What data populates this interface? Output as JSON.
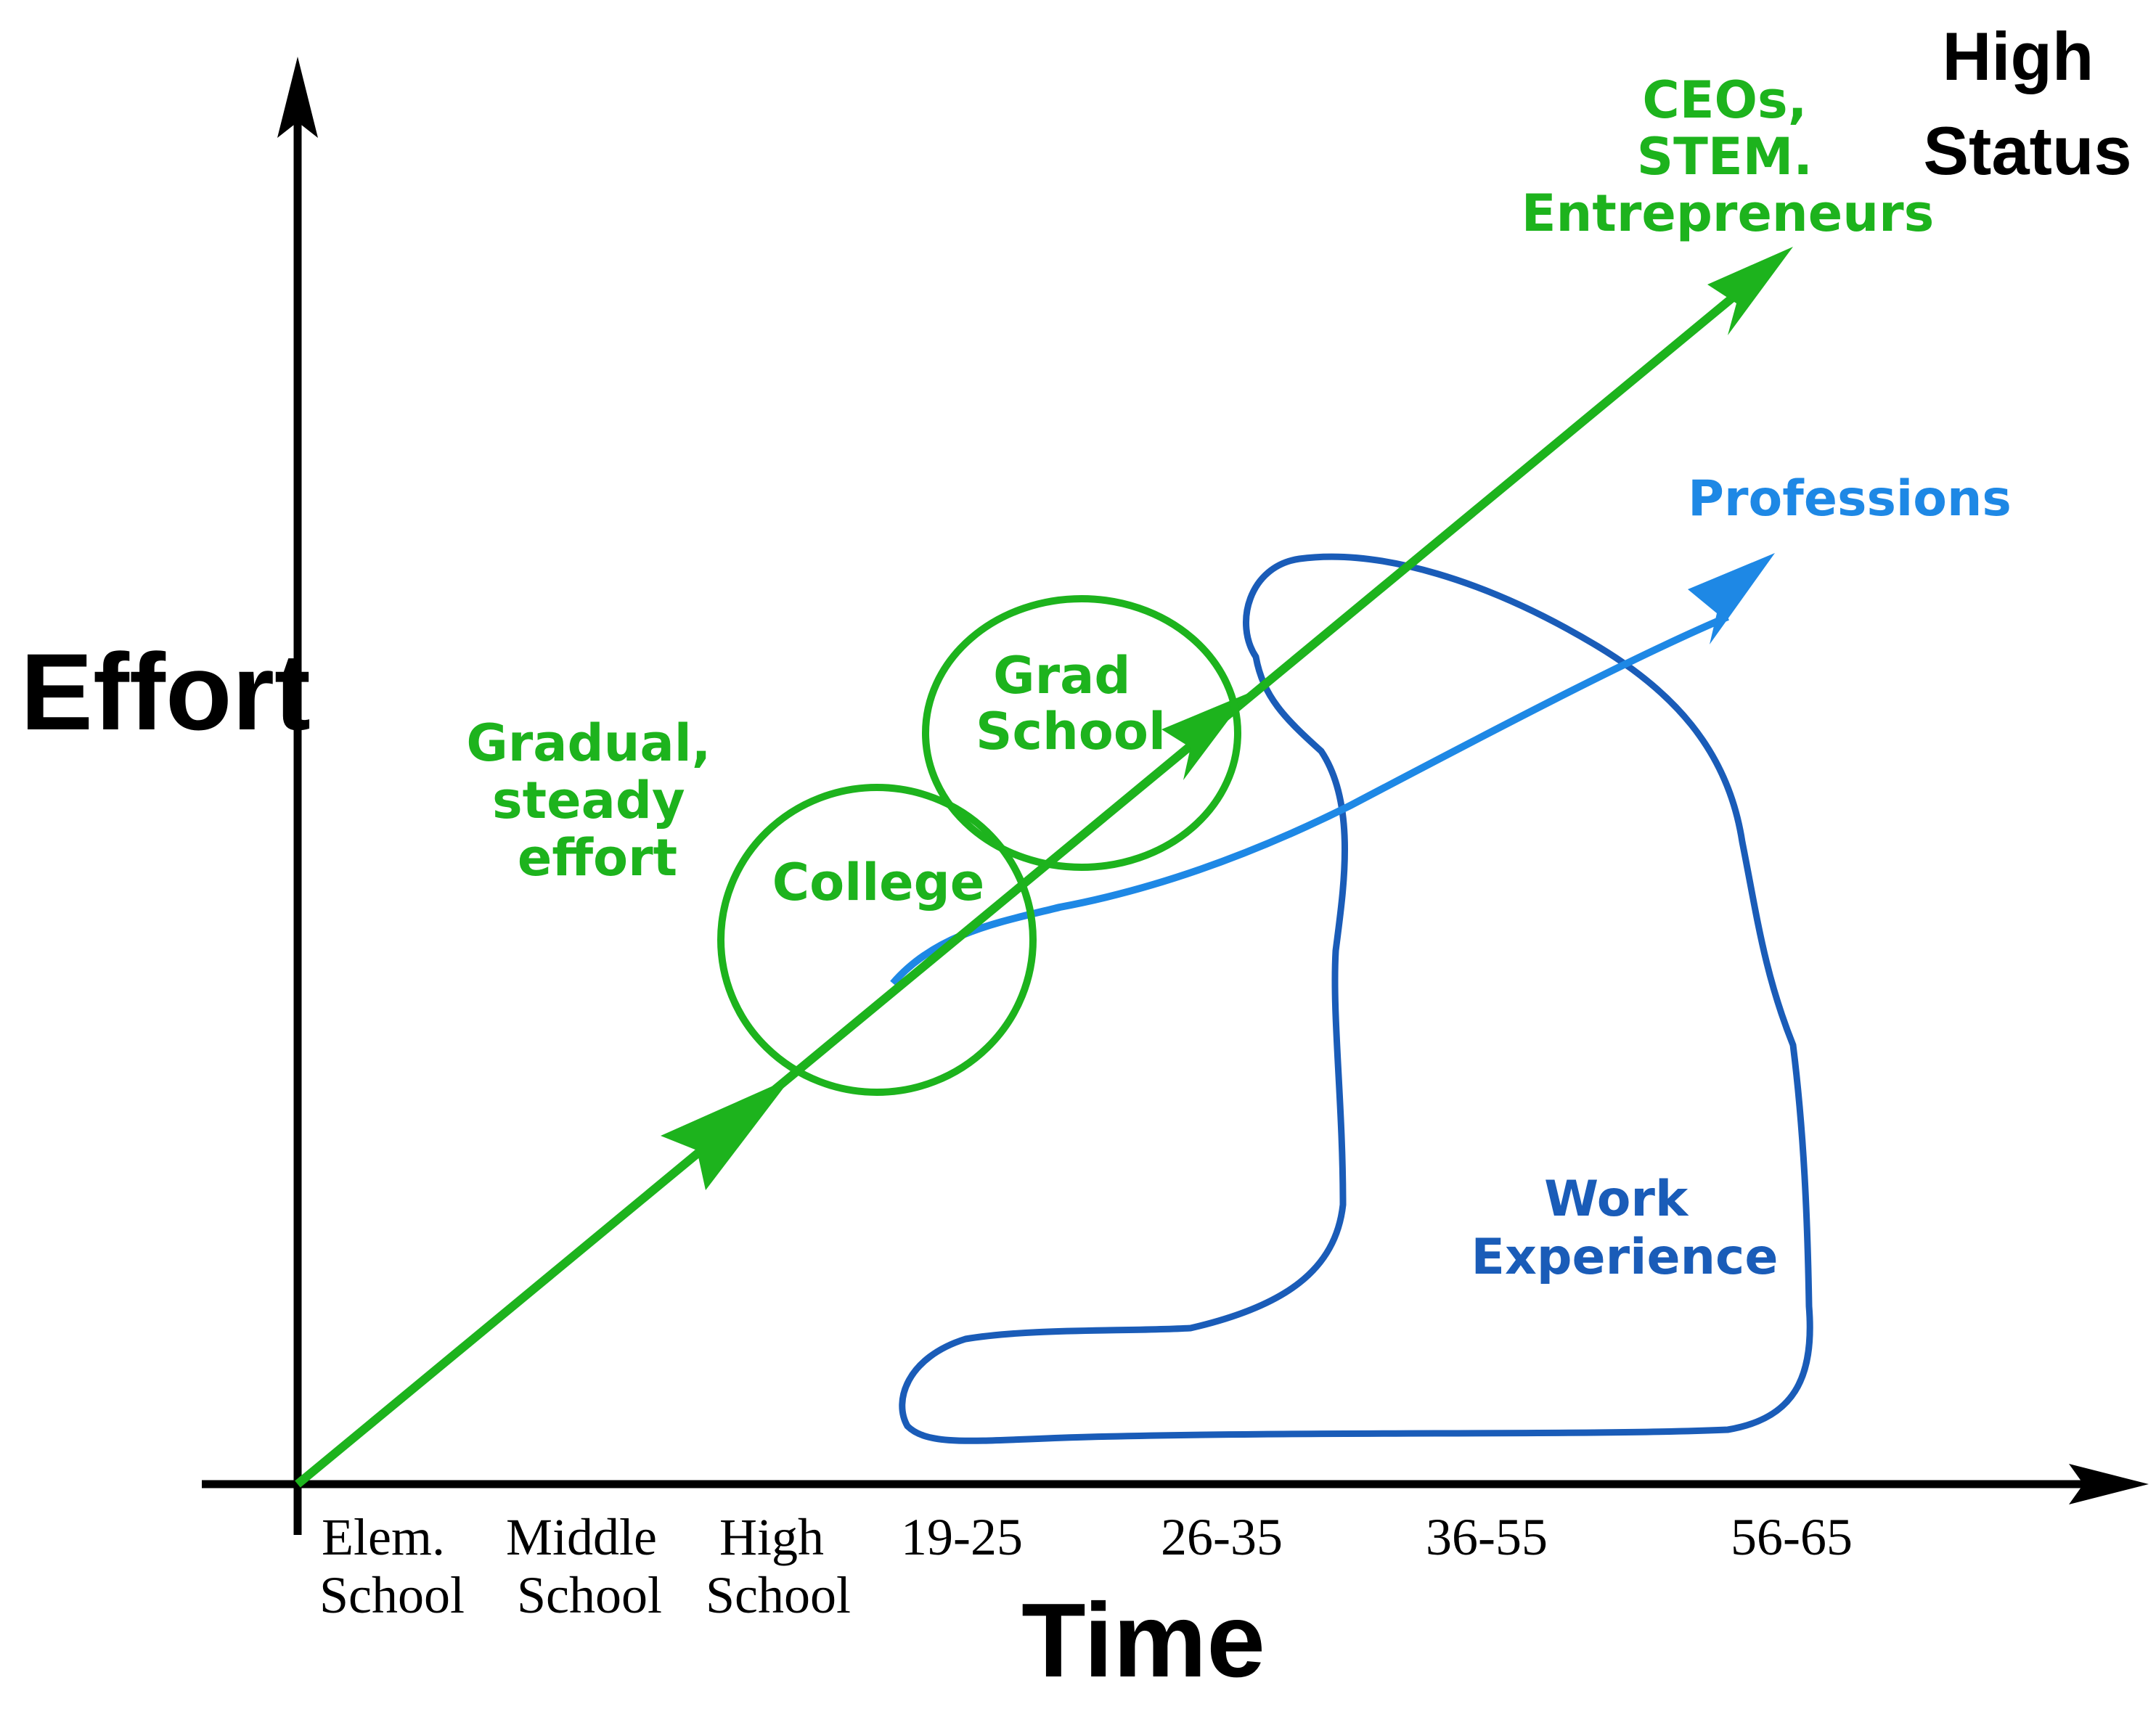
{
  "axes": {
    "y_label": "Effort",
    "x_label": "Time",
    "top_right_label": [
      "High",
      "Status"
    ],
    "x_ticks": [
      [
        "Elem.",
        "School"
      ],
      [
        "Middle",
        "School"
      ],
      [
        "High",
        "School"
      ],
      [
        "19-25"
      ],
      [
        "26-35"
      ],
      [
        "36-55"
      ],
      [
        "56-65"
      ]
    ]
  },
  "paths": {
    "green_arrow_label": [
      "CEOs,",
      "STEM.",
      "Entrepreneurs"
    ],
    "blue_arrow_label": "Professions",
    "effort_label": [
      "Gradual,",
      "steady",
      "effort"
    ],
    "circle_college": "College",
    "circle_grad": [
      "Grad",
      "School"
    ],
    "work_region": [
      "Work",
      "Experience"
    ]
  },
  "colors": {
    "green": "#1db31d",
    "light_blue": "#1e88e5",
    "dark_blue": "#1a5cb8",
    "black": "#000000"
  }
}
